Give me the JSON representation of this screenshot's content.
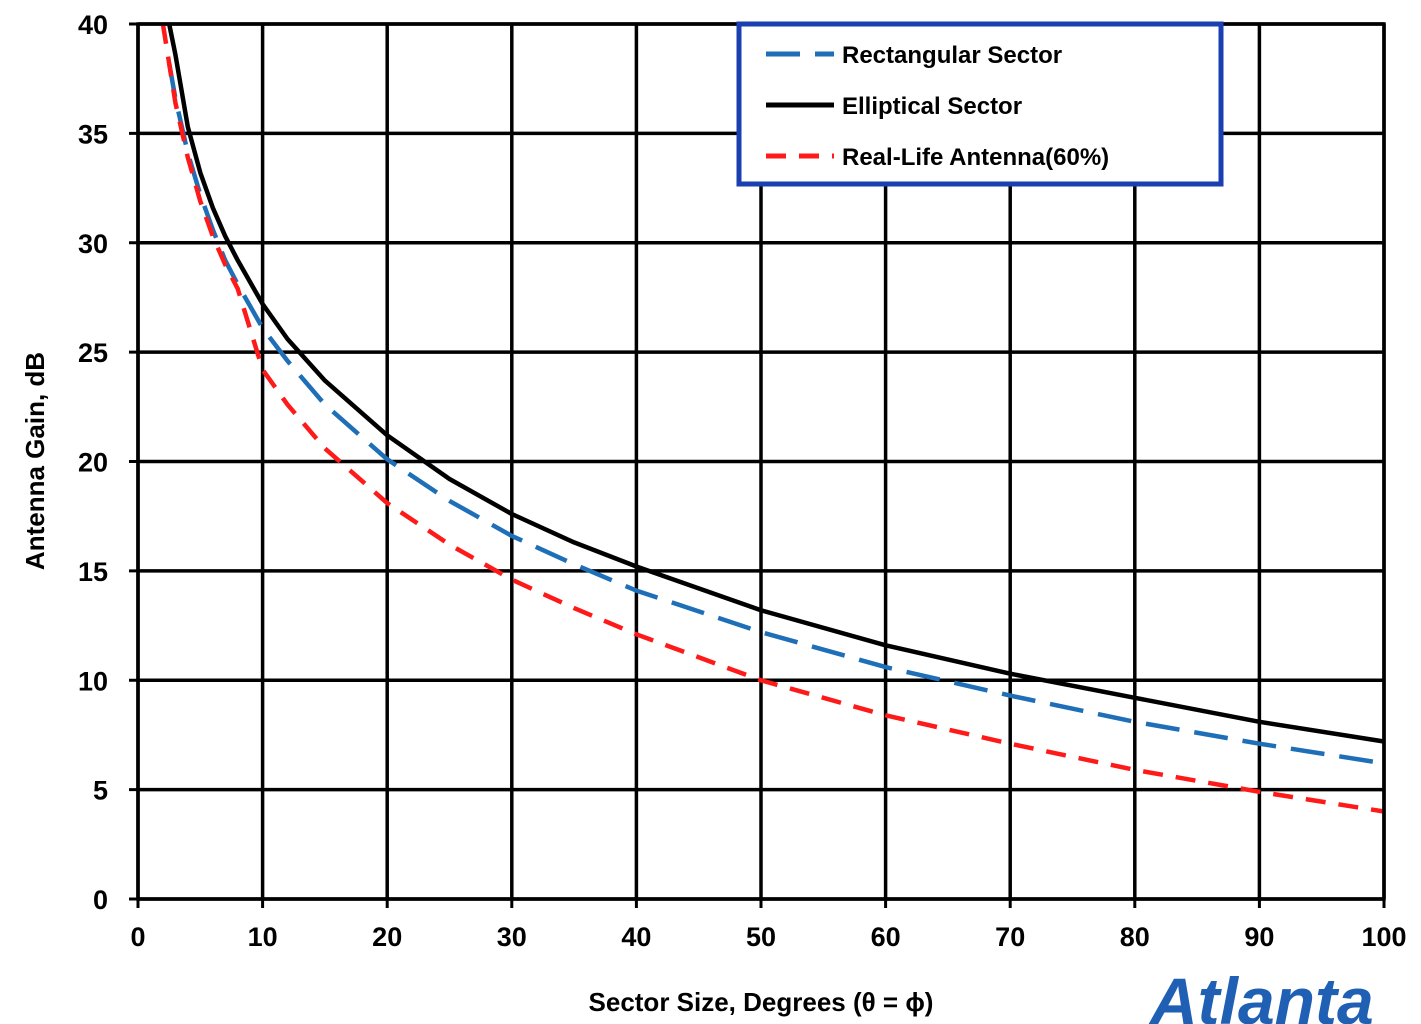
{
  "brand": {
    "text": "Atlanta",
    "color": "#1f5fb4"
  },
  "chart_data": {
    "type": "line",
    "xlabel": "Sector Size, Degrees (θ = ϕ)",
    "ylabel": "Antenna Gain, dB",
    "xlim": [
      0,
      100
    ],
    "ylim": [
      0,
      40
    ],
    "xticks": [
      0,
      10,
      20,
      30,
      40,
      50,
      60,
      70,
      80,
      90,
      100
    ],
    "yticks": [
      0,
      5,
      10,
      15,
      20,
      25,
      30,
      35,
      40
    ],
    "grid": true,
    "legend_position": "top-right",
    "legend_border_color": "#1a3fb0",
    "series": [
      {
        "name": "Rectangular Sector",
        "color": "#1f6fb8",
        "style": "long-dash",
        "x": [
          2.5,
          3,
          4,
          5,
          6,
          7,
          8,
          10,
          12,
          15,
          20,
          25,
          30,
          35,
          40,
          50,
          60,
          70,
          80,
          90,
          100
        ],
        "y": [
          38.2,
          36.6,
          34.1,
          32.2,
          30.6,
          29.2,
          28.1,
          26.1,
          24.6,
          22.6,
          20.1,
          18.2,
          16.6,
          15.3,
          14.1,
          12.2,
          10.6,
          9.3,
          8.1,
          7.1,
          6.2
        ]
      },
      {
        "name": "Elliptical Sector",
        "color": "#000000",
        "style": "solid",
        "x": [
          2.5,
          3,
          4,
          5,
          6,
          7,
          8,
          10,
          12,
          15,
          20,
          25,
          30,
          35,
          40,
          50,
          60,
          70,
          80,
          90,
          100
        ],
        "y": [
          40.0,
          38.6,
          35.3,
          33.2,
          31.6,
          30.3,
          29.2,
          27.2,
          25.6,
          23.7,
          21.2,
          19.2,
          17.6,
          16.3,
          15.2,
          13.2,
          11.6,
          10.3,
          9.2,
          8.1,
          7.2
        ]
      },
      {
        "name": "Real-Life Antenna(60%)",
        "color": "#ff1a1a",
        "style": "short-dash",
        "x": [
          2,
          3,
          4,
          5,
          6,
          7,
          8,
          10,
          12,
          15,
          20,
          25,
          30,
          35,
          40,
          50,
          60,
          70,
          80,
          90,
          100
        ],
        "y": [
          40.0,
          36.4,
          33.9,
          31.9,
          30.3,
          29.0,
          27.9,
          24.2,
          22.6,
          20.6,
          18.1,
          16.2,
          14.6,
          13.3,
          12.1,
          10.0,
          8.4,
          7.1,
          5.9,
          4.9,
          4.0
        ]
      }
    ]
  }
}
